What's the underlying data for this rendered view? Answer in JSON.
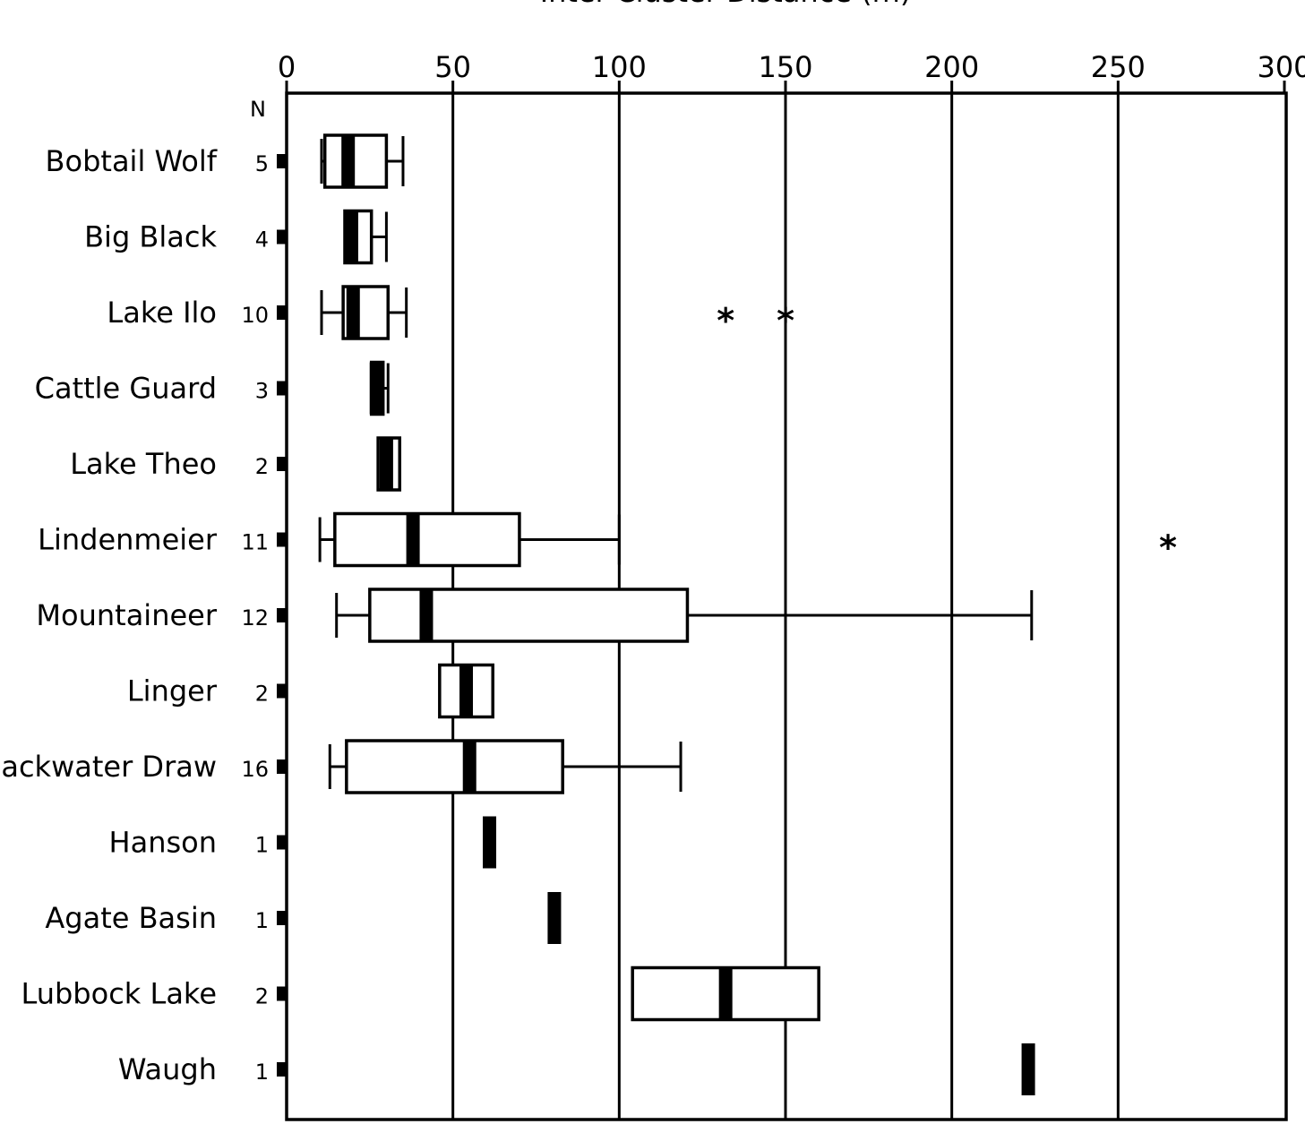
{
  "chart_data": {
    "type": "boxplot",
    "title": "Inter-Cluster Distance (m)",
    "n_header": "N",
    "xlim": [
      0,
      300
    ],
    "xticks": [
      0,
      50,
      100,
      150,
      200,
      250,
      300
    ],
    "grid": true,
    "orientation": "horizontal",
    "series": [
      {
        "name": "Bobtail Wolf",
        "n": "5",
        "whisker_low": 10.5,
        "q1": 11.5,
        "median": 18.5,
        "q3": 30,
        "whisker_high": 35,
        "outliers": []
      },
      {
        "name": "Big Black",
        "n": "4",
        "whisker_low": null,
        "q1": 17.5,
        "median": 19.5,
        "q3": 25.5,
        "whisker_high": 30,
        "outliers": []
      },
      {
        "name": "Lake Ilo",
        "n": "10",
        "whisker_low": 10.5,
        "q1": 17,
        "median": 20,
        "q3": 30.5,
        "whisker_high": 36,
        "outliers": [
          132,
          150
        ]
      },
      {
        "name": "Cattle Guard",
        "n": "3",
        "whisker_low": null,
        "q1": 25.5,
        "median": 27,
        "q3": 29,
        "whisker_high": 30.5,
        "outliers": []
      },
      {
        "name": "Lake Theo",
        "n": "2",
        "whisker_low": null,
        "q1": 27.5,
        "median": 30,
        "q3": 34,
        "whisker_high": null,
        "outliers": []
      },
      {
        "name": "Lindenmeier",
        "n": "11",
        "whisker_low": 10,
        "q1": 14.5,
        "median": 38,
        "q3": 70,
        "whisker_high": 100,
        "outliers": [
          265
        ]
      },
      {
        "name": "Mountaineer",
        "n": "12",
        "whisker_low": 15,
        "q1": 25,
        "median": 42,
        "q3": 120.5,
        "whisker_high": 224,
        "outliers": []
      },
      {
        "name": "Linger",
        "n": "2",
        "whisker_low": null,
        "q1": 46,
        "median": 54,
        "q3": 62,
        "whisker_high": null,
        "outliers": []
      },
      {
        "name": "Blackwater Draw",
        "n": "16",
        "whisker_low": 13,
        "q1": 18,
        "median": 55,
        "q3": 83,
        "whisker_high": 118.5,
        "outliers": []
      },
      {
        "name": "Hanson",
        "n": "1",
        "whisker_low": null,
        "q1": null,
        "median": 61,
        "q3": null,
        "whisker_high": null,
        "outliers": []
      },
      {
        "name": "Agate Basin",
        "n": "1",
        "whisker_low": null,
        "q1": null,
        "median": 80.5,
        "q3": null,
        "whisker_high": null,
        "outliers": []
      },
      {
        "name": "Lubbock Lake",
        "n": "2",
        "whisker_low": null,
        "q1": 104,
        "median": 132,
        "q3": 160,
        "whisker_high": null,
        "outliers": []
      },
      {
        "name": "Waugh",
        "n": "1",
        "whisker_low": null,
        "q1": null,
        "median": 223,
        "q3": null,
        "whisker_high": null,
        "outliers": []
      }
    ]
  }
}
